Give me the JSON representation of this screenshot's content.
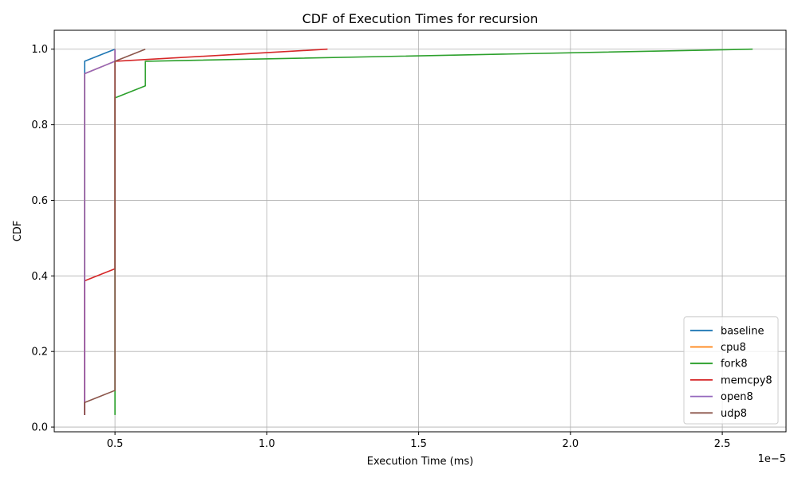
{
  "chart_data": {
    "type": "line",
    "title": "CDF of Execution Times for recursion",
    "xlabel": "Execution Time (ms)",
    "ylabel": "CDF",
    "x_offset_label": "1e−5",
    "xlim": [
      3e-06,
      2.71e-05
    ],
    "ylim": [
      -0.0125,
      1.05
    ],
    "xticks": [
      5e-06,
      1e-05,
      1.5e-05,
      2e-05,
      2.5e-05
    ],
    "xtick_labels": [
      "0.5",
      "1.0",
      "1.5",
      "2.0",
      "2.5"
    ],
    "yticks": [
      0.0,
      0.2,
      0.4,
      0.6,
      0.8,
      1.0
    ],
    "ytick_labels": [
      "0.0",
      "0.2",
      "0.4",
      "0.6",
      "0.8",
      "1.0"
    ],
    "grid": true,
    "legend_position": "lower right",
    "series": [
      {
        "name": "baseline",
        "color": "#1f77b4",
        "x": [
          4e-06,
          4e-06,
          5e-06,
          5e-06
        ],
        "y": [
          0.032,
          0.968,
          1.0,
          1.0
        ]
      },
      {
        "name": "cpu8",
        "color": "#ff7f0e",
        "x": [
          4e-06,
          4e-06,
          5e-06,
          5e-06
        ],
        "y": [
          0.032,
          0.935,
          0.968,
          1.0
        ]
      },
      {
        "name": "fork8",
        "color": "#2ca02c",
        "x": [
          5e-06,
          5e-06,
          6e-06,
          6e-06,
          2.6e-05
        ],
        "y": [
          0.032,
          0.871,
          0.903,
          0.968,
          1.0
        ]
      },
      {
        "name": "memcpy8",
        "color": "#d62728",
        "x": [
          4e-06,
          4e-06,
          5e-06,
          5e-06,
          1.2e-05
        ],
        "y": [
          0.032,
          0.387,
          0.419,
          0.968,
          1.0
        ]
      },
      {
        "name": "open8",
        "color": "#9467bd",
        "x": [
          4e-06,
          4e-06,
          5e-06,
          5e-06
        ],
        "y": [
          0.032,
          0.935,
          0.968,
          1.0
        ]
      },
      {
        "name": "udp8",
        "color": "#8c564b",
        "x": [
          4e-06,
          4e-06,
          5e-06,
          5e-06,
          6e-06
        ],
        "y": [
          0.032,
          0.065,
          0.097,
          0.968,
          1.0
        ]
      }
    ]
  }
}
